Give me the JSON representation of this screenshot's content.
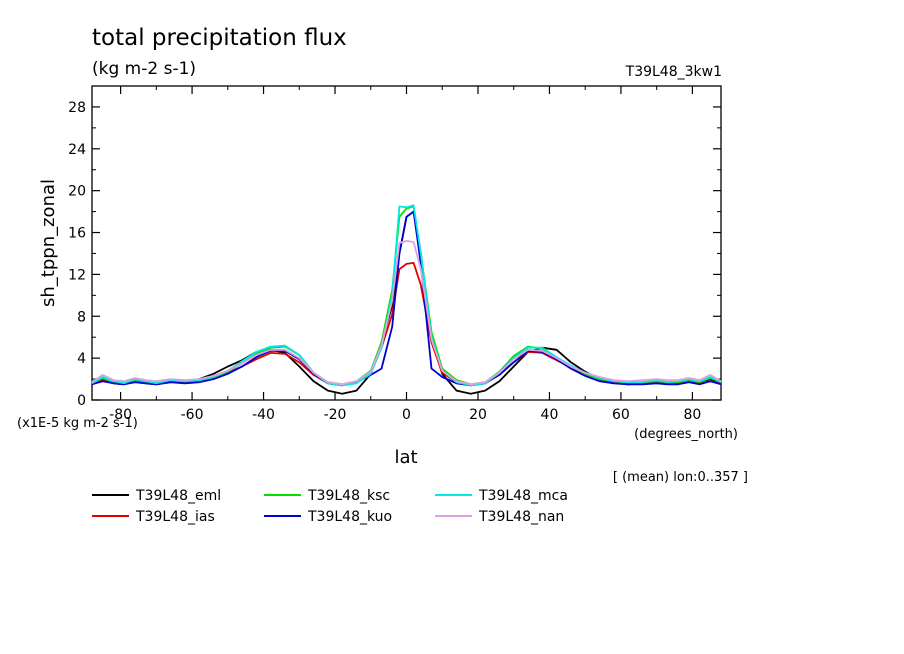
{
  "chart_data": {
    "type": "line",
    "title": "total precipitation flux",
    "subtitle": "(kg m-2 s-1)",
    "experiment": "T39L48_3kw1",
    "ylabel": "sh_tppn_zonal",
    "xlabel": "lat",
    "x_units": "(degrees_north)",
    "y_scale_note": "(x1E-5 kg m-2 s-1)",
    "annotation": "[ (mean) lon:0..357 ]",
    "xlim": [
      -88,
      88
    ],
    "ylim": [
      0,
      30
    ],
    "xticks": [
      -80,
      -60,
      -40,
      -20,
      0,
      20,
      40,
      60,
      80
    ],
    "xtick_labels": [
      "-80",
      "-60",
      "-40",
      "-20",
      "0",
      "20",
      "40",
      "60",
      "80"
    ],
    "yticks": [
      0,
      4,
      8,
      12,
      16,
      20,
      24,
      28
    ],
    "ytick_labels": [
      "0",
      "4",
      "8",
      "12",
      "16",
      "20",
      "24",
      "28"
    ],
    "grid": false,
    "legend_position": "bottom-left",
    "x": [
      -88,
      -85,
      -82,
      -79,
      -76,
      -73,
      -70,
      -66,
      -62,
      -58,
      -54,
      -50,
      -46,
      -42,
      -38,
      -34,
      -30,
      -26,
      -22,
      -18,
      -14,
      -10,
      -7,
      -4,
      -2,
      0,
      2,
      4,
      7,
      10,
      14,
      18,
      22,
      26,
      30,
      34,
      38,
      42,
      46,
      50,
      54,
      58,
      62,
      66,
      70,
      73,
      76,
      79,
      82,
      85,
      88
    ],
    "series": [
      {
        "name": "T39L48_eml",
        "color": "#000000",
        "values": [
          1.6,
          2.0,
          1.7,
          1.6,
          1.9,
          1.7,
          1.6,
          1.8,
          1.7,
          2.0,
          2.5,
          3.2,
          3.8,
          4.6,
          4.8,
          4.5,
          3.2,
          1.8,
          0.9,
          0.6,
          0.9,
          2.5,
          5.5,
          9.0,
          14.0,
          17.5,
          18.0,
          14.0,
          6.0,
          2.5,
          0.9,
          0.6,
          0.9,
          1.8,
          3.2,
          4.6,
          5.0,
          4.8,
          3.6,
          2.7,
          2.0,
          1.7,
          1.5,
          1.6,
          1.8,
          1.6,
          1.7,
          1.9,
          1.7,
          2.0,
          1.7
        ]
      },
      {
        "name": "T39L48_ias",
        "color": "#e00000",
        "values": [
          1.5,
          1.9,
          1.6,
          1.5,
          1.8,
          1.6,
          1.5,
          1.7,
          1.7,
          1.8,
          2.1,
          2.6,
          3.2,
          3.9,
          4.5,
          4.4,
          3.6,
          2.4,
          1.6,
          1.4,
          1.7,
          2.6,
          5.0,
          8.2,
          12.5,
          13.0,
          13.1,
          11.0,
          5.5,
          2.6,
          1.7,
          1.4,
          1.6,
          2.5,
          3.6,
          4.6,
          4.5,
          3.8,
          3.1,
          2.5,
          2.0,
          1.7,
          1.6,
          1.6,
          1.7,
          1.6,
          1.6,
          1.8,
          1.6,
          1.8,
          1.6
        ]
      },
      {
        "name": "T39L48_ksc",
        "color": "#00e000",
        "values": [
          1.6,
          2.1,
          1.7,
          1.6,
          1.9,
          1.7,
          1.6,
          1.8,
          1.7,
          1.8,
          2.1,
          2.7,
          3.5,
          4.4,
          5.0,
          5.1,
          4.3,
          2.6,
          1.7,
          1.5,
          1.8,
          2.8,
          5.5,
          10.5,
          17.5,
          18.3,
          18.5,
          14.0,
          6.5,
          3.0,
          1.9,
          1.5,
          1.7,
          2.7,
          4.2,
          5.1,
          4.9,
          4.0,
          3.2,
          2.5,
          2.0,
          1.8,
          1.6,
          1.7,
          1.8,
          1.7,
          1.7,
          1.9,
          1.7,
          2.1,
          1.7
        ]
      },
      {
        "name": "T39L48_kuo",
        "color": "#0000d0",
        "values": [
          1.5,
          1.8,
          1.6,
          1.5,
          1.7,
          1.6,
          1.5,
          1.7,
          1.6,
          1.7,
          2.0,
          2.5,
          3.2,
          4.1,
          4.7,
          4.7,
          3.9,
          2.5,
          1.6,
          1.4,
          1.7,
          2.4,
          3.0,
          7.0,
          14.0,
          17.5,
          18.0,
          13.0,
          3.0,
          2.2,
          1.6,
          1.4,
          1.6,
          2.4,
          3.6,
          4.7,
          4.6,
          3.9,
          3.0,
          2.3,
          1.8,
          1.6,
          1.5,
          1.5,
          1.6,
          1.5,
          1.5,
          1.7,
          1.5,
          1.8,
          1.5
        ]
      },
      {
        "name": "T39L48_mca",
        "color": "#00e8e8",
        "values": [
          1.6,
          2.2,
          1.8,
          1.6,
          2.0,
          1.8,
          1.6,
          1.9,
          1.8,
          1.9,
          2.2,
          2.8,
          3.7,
          4.6,
          5.1,
          5.2,
          4.3,
          2.6,
          1.6,
          1.4,
          1.6,
          2.5,
          5.0,
          10.0,
          18.5,
          18.4,
          18.6,
          14.0,
          6.0,
          2.8,
          1.7,
          1.4,
          1.6,
          2.6,
          4.0,
          5.0,
          5.0,
          4.1,
          3.3,
          2.6,
          2.1,
          1.8,
          1.7,
          1.7,
          1.9,
          1.7,
          1.8,
          2.0,
          1.8,
          2.2,
          1.7
        ]
      },
      {
        "name": "T39L48_nan",
        "color": "#e0a0e0",
        "values": [
          1.7,
          2.4,
          1.9,
          1.8,
          2.1,
          1.9,
          1.8,
          2.0,
          1.9,
          2.0,
          2.3,
          2.8,
          3.5,
          4.3,
          4.8,
          4.8,
          4.0,
          2.6,
          1.7,
          1.5,
          1.8,
          2.7,
          5.2,
          9.5,
          15.0,
          15.2,
          15.1,
          12.5,
          5.8,
          2.8,
          1.8,
          1.5,
          1.7,
          2.6,
          3.9,
          4.8,
          4.7,
          4.0,
          3.2,
          2.6,
          2.2,
          1.9,
          1.8,
          1.9,
          2.0,
          1.9,
          1.9,
          2.1,
          1.9,
          2.4,
          1.8
        ]
      }
    ]
  }
}
